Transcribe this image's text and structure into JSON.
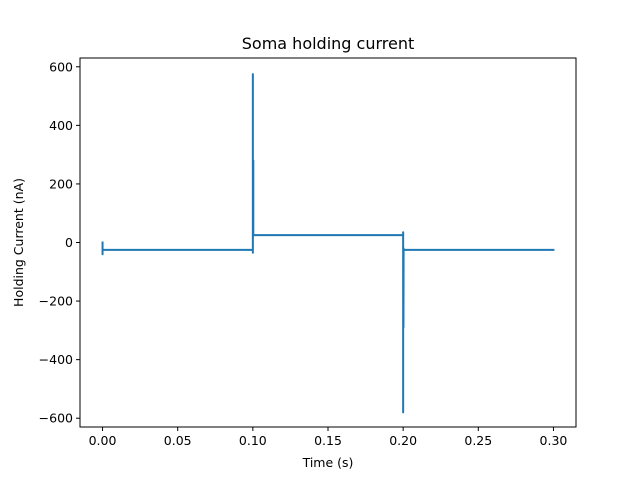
{
  "chart_data": {
    "type": "line",
    "title": "Soma holding current",
    "xlabel": "Time (s)",
    "ylabel": "Holding Current (nA)",
    "xlim": [
      -0.015,
      0.315
    ],
    "ylim": [
      -630,
      630
    ],
    "xticks": [
      0.0,
      0.05,
      0.1,
      0.15,
      0.2,
      0.25,
      0.3
    ],
    "xtick_labels": [
      "0.00",
      "0.05",
      "0.10",
      "0.15",
      "0.20",
      "0.25",
      "0.30"
    ],
    "yticks": [
      -600,
      -400,
      -200,
      0,
      200,
      400,
      600
    ],
    "ytick_labels": [
      "−600",
      "−400",
      "−200",
      "0",
      "200",
      "400",
      "600"
    ],
    "grid": false,
    "color": "#1f77b4",
    "series": [
      {
        "x": [
          0.0,
          0.0,
          0.0,
          0.0,
          0.0001,
          0.1,
          0.1,
          0.1,
          0.1,
          0.1001,
          0.1003,
          0.1003,
          0.1004,
          0.2,
          0.2,
          0.2,
          0.2,
          0.2002,
          0.2003,
          0.2004,
          0.3
        ],
        "y": [
          0,
          -40,
          0,
          -25,
          -25,
          -25,
          -35,
          575,
          20,
          20,
          280,
          25,
          25,
          25,
          -580,
          35,
          -25,
          -290,
          -20,
          -25,
          -25
        ]
      }
    ]
  }
}
